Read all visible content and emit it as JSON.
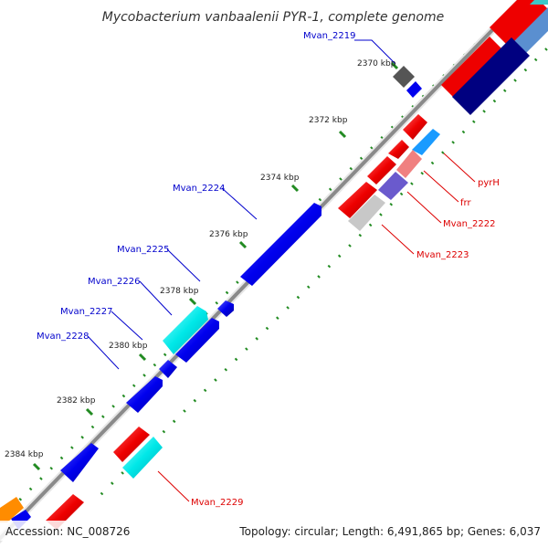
{
  "title": "Mycobacterium vanbaalenii PYR-1, complete genome",
  "footer": {
    "accession": "Accession: NC_008726",
    "summary": "Topology: circular; Length: 6,491,865 bp; Genes: 6,037"
  },
  "ticks": [
    "2370 kbp",
    "2372 kbp",
    "2374 kbp",
    "2376 kbp",
    "2378 kbp",
    "2380 kbp",
    "2382 kbp",
    "2384 kbp"
  ],
  "gene_labels": {
    "left": [
      "Mvan_2219",
      "Mvan_2224",
      "Mvan_2225",
      "Mvan_2226",
      "Mvan_2227",
      "Mvan_2228"
    ],
    "right": [
      "pyrH",
      "frr",
      "Mvan_2222",
      "Mvan_2223",
      "Mvan_2229"
    ]
  },
  "colors": {
    "forward_cds": "#0000ff",
    "reverse_cds": "#ff0000",
    "label_forward": "#0000cc",
    "label_reverse": "#dd0000",
    "backbone": "#888888",
    "tick": "#228b22"
  }
}
